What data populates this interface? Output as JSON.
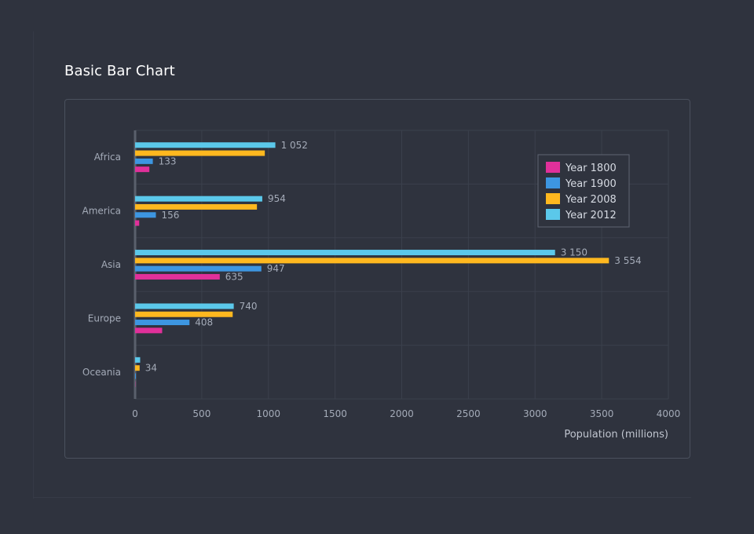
{
  "page": {
    "title": "Basic Bar Chart"
  },
  "chart_data": {
    "type": "bar",
    "orientation": "horizontal",
    "title": "Basic Bar Chart",
    "xlabel": "Population (millions)",
    "ylabel": "",
    "xlim": [
      0,
      4000
    ],
    "xticks": [
      0,
      500,
      1000,
      1500,
      2000,
      2500,
      3000,
      3500,
      4000
    ],
    "grid": true,
    "legend_position": "top-right",
    "categories": [
      "Africa",
      "America",
      "Asia",
      "Europe",
      "Oceania"
    ],
    "series": [
      {
        "name": "Year 2012",
        "color": "#5bc8ea",
        "values": [
          1052,
          954,
          3150,
          740,
          38
        ],
        "labels": [
          "1 052",
          "954",
          "3 150",
          "740",
          ""
        ]
      },
      {
        "name": "Year 2008",
        "color": "#ffb81f",
        "values": [
          973,
          914,
          3554,
          732,
          34
        ],
        "labels": [
          "",
          "",
          "3 554",
          "",
          "34"
        ]
      },
      {
        "name": "Year 1900",
        "color": "#3d96e1",
        "values": [
          133,
          156,
          947,
          408,
          6
        ],
        "labels": [
          "133",
          "156",
          "947",
          "408",
          ""
        ]
      },
      {
        "name": "Year 1800",
        "color": "#e0309a",
        "values": [
          107,
          31,
          635,
          203,
          2
        ],
        "labels": [
          "",
          "",
          "635",
          "",
          ""
        ]
      }
    ],
    "legend": [
      "Year 1800",
      "Year 1900",
      "Year 2008",
      "Year 2012"
    ]
  }
}
